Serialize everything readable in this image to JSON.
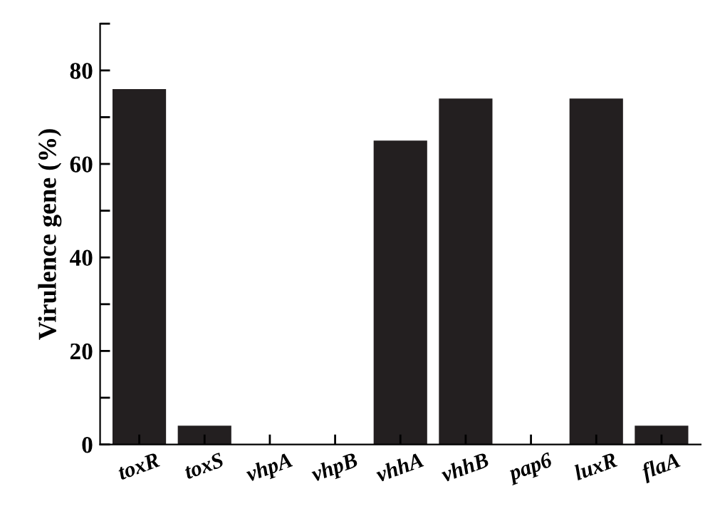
{
  "chart_data": {
    "type": "bar",
    "ylabel": "Virulence gene (%)",
    "categories": [
      "toxR",
      "toxS",
      "vhpA",
      "vhpB",
      "vhhA",
      "vhhB",
      "pap6",
      "luxR",
      "flaA"
    ],
    "values": [
      76,
      4,
      0,
      0,
      65,
      74,
      0,
      74,
      4
    ],
    "color": "#231f20",
    "ylim": [
      0,
      90
    ],
    "yticks": [
      0,
      {
        "value": 10,
        "label": null
      },
      20,
      {
        "value": 30,
        "label": null
      },
      40,
      {
        "value": 50,
        "label": null
      },
      60,
      {
        "value": 70,
        "label": null
      },
      80,
      {
        "value": 90,
        "label": null
      }
    ],
    "grid": false,
    "legend": false
  }
}
